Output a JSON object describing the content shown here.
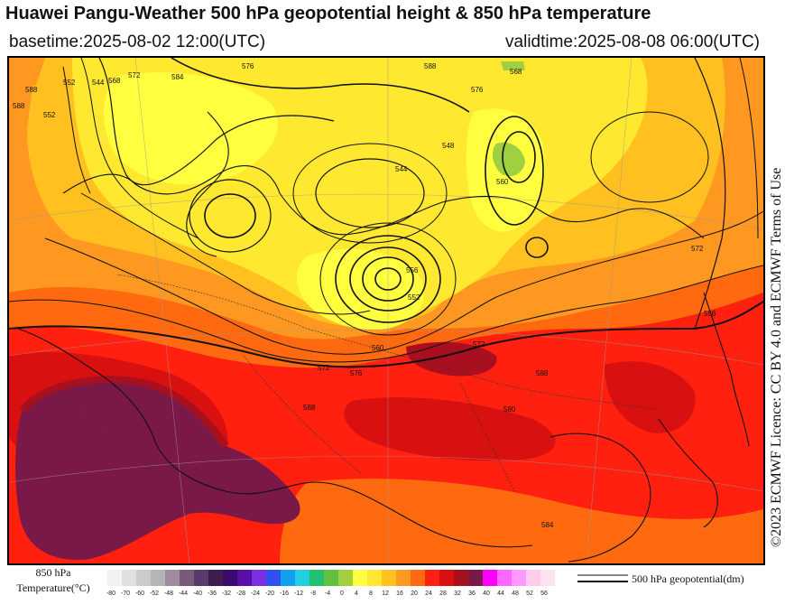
{
  "header": {
    "title": "Huawei Pangu-Weather 500 hPa geopotential height & 850 hPa temperature",
    "basetime": "basetime:2025-08-02 12:00(UTC)",
    "validtime": "validtime:2025-08-08 06:00(UTC)"
  },
  "credit": "©2023 ECMWF Licence: CC BY 4.0 and ECMWF Terms of Use",
  "colorbar": {
    "title_line1": "850 hPa",
    "title_line2": "Temperature(°C)",
    "ticks": [
      "-80",
      "-70",
      "-60",
      "-52",
      "-48",
      "-44",
      "-40",
      "-36",
      "-32",
      "-28",
      "-24",
      "-20",
      "-16",
      "-12",
      "-8",
      "-4",
      "0",
      "4",
      "8",
      "12",
      "16",
      "20",
      "24",
      "28",
      "32",
      "36",
      "40",
      "44",
      "48",
      "52",
      "56"
    ],
    "colors": [
      "#f2f2f2",
      "#e0e0e0",
      "#cbcbcb",
      "#b5b5b5",
      "#9c8c9c",
      "#7a5a7a",
      "#5a3a6a",
      "#3c1e50",
      "#3a0a6e",
      "#5a10a8",
      "#7a30e0",
      "#3050f0",
      "#10a0f0",
      "#20d0e0",
      "#20c070",
      "#60c040",
      "#a0d040",
      "#ffff40",
      "#ffe830",
      "#ffc020",
      "#ff9820",
      "#ff6a10",
      "#ff2010",
      "#d81010",
      "#a81020",
      "#7a1848",
      "#ff00ff",
      "#ff66ff",
      "#ff99ff",
      "#ffccee",
      "#ffe0f0"
    ]
  },
  "legend": {
    "contour_label": "500 hPa geopotential(dm)"
  },
  "map": {
    "contour_labels": [
      "588",
      "588",
      "568",
      "572",
      "576",
      "584",
      "588",
      "576",
      "568",
      "560",
      "552",
      "552",
      "544",
      "544",
      "548",
      "556",
      "572",
      "552",
      "576",
      "588",
      "560",
      "572",
      "556",
      "588",
      "572",
      "580",
      "584"
    ]
  }
}
